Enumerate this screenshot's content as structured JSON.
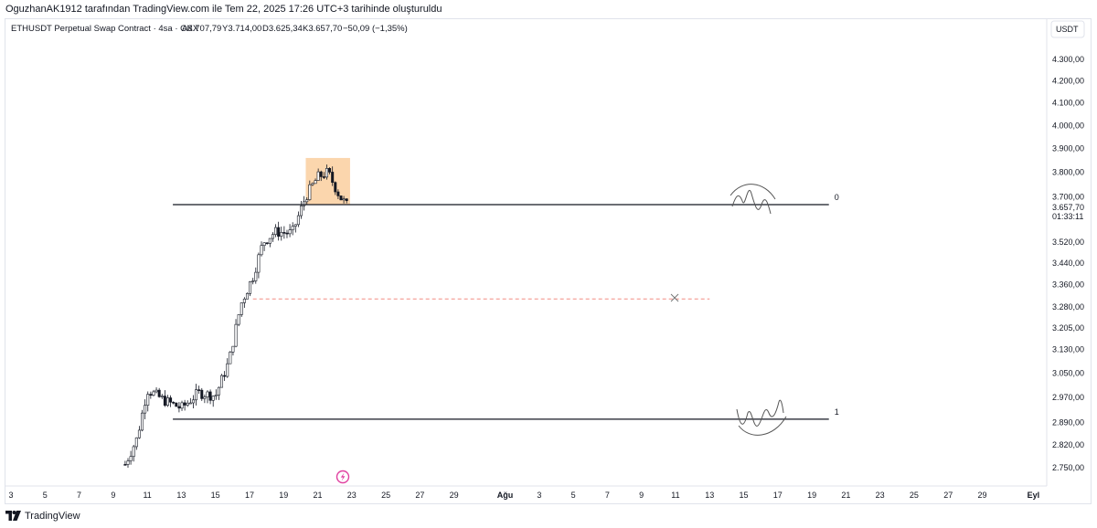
{
  "header": {
    "attribution": "OguzhanAK1912 tarafından TradingView.com ile Tem 22, 2025 17:26 UTC+3 tarihinde oluşturuldu"
  },
  "legend": {
    "symbol_line": "ETHUSDT Perpetual Swap Contract · 4sa · OKX",
    "open": "A3.707,79",
    "high": "Y3.714,00",
    "low": "D3.625,34",
    "close": "K3.657,70",
    "change": "−50,09 (−1,35%)"
  },
  "price_axis": {
    "currency_button": "USDT",
    "last_price_label": "3.657,70",
    "countdown_label": "01:33:11"
  },
  "footer": {
    "brand": "TradingView",
    "logo_icon": "tradingview-logo-icon"
  },
  "colors": {
    "accent_box": "#f9c892",
    "level_line": "#131722",
    "dashed_line": "#f28b82",
    "lightning_icon": "#e040a0"
  },
  "chart_data": {
    "type": "candlestick",
    "y_scale": "log",
    "ylim": [
      2720,
      4440
    ],
    "y_ticks": [
      {
        "value": 4300,
        "label": "4.300,00"
      },
      {
        "value": 4200,
        "label": "4.200,00"
      },
      {
        "value": 4100,
        "label": "4.100,00"
      },
      {
        "value": 4000,
        "label": "4.000,00"
      },
      {
        "value": 3900,
        "label": "3.900,00"
      },
      {
        "value": 3800,
        "label": "3.800,00"
      },
      {
        "value": 3700,
        "label": "3.700,00"
      },
      {
        "value": 3520,
        "label": "3.520,00"
      },
      {
        "value": 3440,
        "label": "3.440,00"
      },
      {
        "value": 3360,
        "label": "3.360,00"
      },
      {
        "value": 3280,
        "label": "3.280,00"
      },
      {
        "value": 3205,
        "label": "3.205,00"
      },
      {
        "value": 3130,
        "label": "3.130,00"
      },
      {
        "value": 3050,
        "label": "3.050,00"
      },
      {
        "value": 2970,
        "label": "2.970,00"
      },
      {
        "value": 2890,
        "label": "2.890,00"
      },
      {
        "value": 2820,
        "label": "2.820,00"
      },
      {
        "value": 2750,
        "label": "2.750,00"
      }
    ],
    "x_ticks": [
      {
        "day": 3,
        "label": "3"
      },
      {
        "day": 5,
        "label": "5"
      },
      {
        "day": 7,
        "label": "7"
      },
      {
        "day": 9,
        "label": "9"
      },
      {
        "day": 11,
        "label": "11"
      },
      {
        "day": 13,
        "label": "13"
      },
      {
        "day": 15,
        "label": "15"
      },
      {
        "day": 17,
        "label": "17"
      },
      {
        "day": 19,
        "label": "19"
      },
      {
        "day": 21,
        "label": "21"
      },
      {
        "day": 23,
        "label": "23"
      },
      {
        "day": 25,
        "label": "25"
      },
      {
        "day": 27,
        "label": "27"
      },
      {
        "day": 29,
        "label": "29"
      },
      {
        "day": 32,
        "label": "Ağu"
      },
      {
        "day": 34,
        "label": "3"
      },
      {
        "day": 36,
        "label": "5"
      },
      {
        "day": 38,
        "label": "7"
      },
      {
        "day": 40,
        "label": "9"
      },
      {
        "day": 42,
        "label": "11"
      },
      {
        "day": 44,
        "label": "13"
      },
      {
        "day": 46,
        "label": "15"
      },
      {
        "day": 48,
        "label": "17"
      },
      {
        "day": 50,
        "label": "19"
      },
      {
        "day": 52,
        "label": "21"
      },
      {
        "day": 54,
        "label": "23"
      },
      {
        "day": 56,
        "label": "25"
      },
      {
        "day": 58,
        "label": "27"
      },
      {
        "day": 60,
        "label": "29"
      },
      {
        "day": 63,
        "label": "Eyl"
      }
    ],
    "last_price": 3657.7,
    "levels": [
      {
        "label": "0",
        "price": 3668,
        "from_day": 12.5,
        "to_day": 51
      },
      {
        "label": "1",
        "price": 2900,
        "from_day": 12.5,
        "to_day": 51
      }
    ],
    "dashed_level": {
      "price": 3308,
      "from_day": 17.2,
      "to_day": 44,
      "color": "#f28b82"
    },
    "highlight_box": {
      "from_day": 20.3,
      "to_day": 22.9,
      "price_low": 3668,
      "price_high": 3860,
      "color": "#f9c892"
    },
    "anchor_points": [
      {
        "day": 9.7,
        "price": 2760
      },
      {
        "day": 10.4,
        "price": 2840
      },
      {
        "day": 11.0,
        "price": 2995
      },
      {
        "day": 12.0,
        "price": 2960
      },
      {
        "day": 13.0,
        "price": 2935
      },
      {
        "day": 14.0,
        "price": 2985
      },
      {
        "day": 15.0,
        "price": 2975
      },
      {
        "day": 15.8,
        "price": 3090
      },
      {
        "day": 16.5,
        "price": 3290
      },
      {
        "day": 17.2,
        "price": 3390
      },
      {
        "day": 17.8,
        "price": 3520
      },
      {
        "day": 18.5,
        "price": 3560
      },
      {
        "day": 19.5,
        "price": 3555
      },
      {
        "day": 20.3,
        "price": 3700
      },
      {
        "day": 21.0,
        "price": 3780
      },
      {
        "day": 21.6,
        "price": 3800
      },
      {
        "day": 22.3,
        "price": 3700
      },
      {
        "day": 22.8,
        "price": 3657.7
      }
    ]
  }
}
